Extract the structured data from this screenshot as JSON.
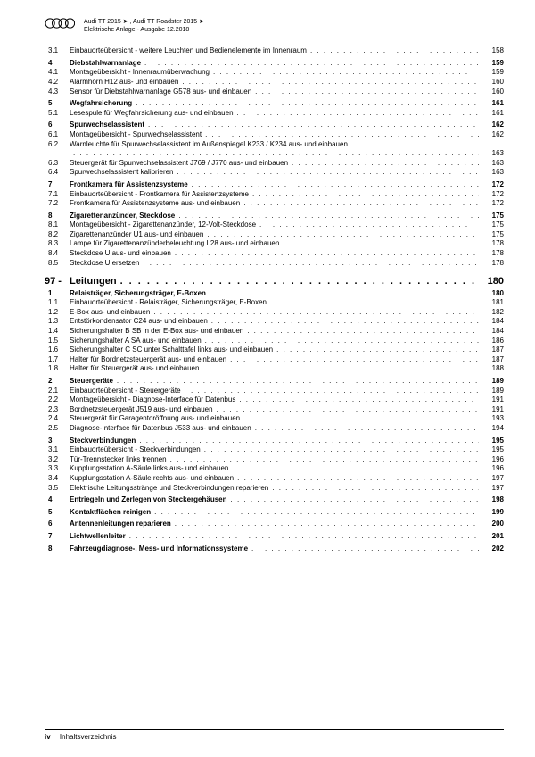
{
  "header": {
    "line1": "Audi TT 2015 ➤ , Audi TT Roadster 2015 ➤",
    "line2": "Elektrische Anlage - Ausgabe 12.2018"
  },
  "entries": [
    {
      "num": "3.1",
      "title": "Einbauorteübersicht - weitere Leuchten und Bedienelemente im Innenraum",
      "page": "158",
      "bold": false,
      "gapBefore": false
    },
    {
      "num": "4",
      "title": "Diebstahlwarnanlage",
      "page": "159",
      "bold": true,
      "gapBefore": true
    },
    {
      "num": "4.1",
      "title": "Montageübersicht - Innenraumüberwachung",
      "page": "159",
      "bold": false
    },
    {
      "num": "4.2",
      "title": "Alarmhorn H12 aus- und einbauen",
      "page": "160",
      "bold": false
    },
    {
      "num": "4.3",
      "title": "Sensor für Diebstahlwarnanlage G578 aus- und einbauen",
      "page": "160",
      "bold": false
    },
    {
      "num": "5",
      "title": "Wegfahrsicherung",
      "page": "161",
      "bold": true,
      "gapBefore": true
    },
    {
      "num": "5.1",
      "title": "Lesespule für Wegfahrsicherung aus- und einbauen",
      "page": "161",
      "bold": false
    },
    {
      "num": "6",
      "title": "Spurwechselassistent",
      "page": "162",
      "bold": true,
      "gapBefore": true
    },
    {
      "num": "6.1",
      "title": "Montageübersicht - Spurwechselassistent",
      "page": "162",
      "bold": false
    },
    {
      "num": "6.2",
      "title": "Warnleuchte für Spurwechselassistent im Außenspiegel K233 / K234 aus- und einbauen",
      "page": "163",
      "bold": false,
      "wrap": true
    },
    {
      "num": "6.3",
      "title": "Steuergerät für Spurwechselassistent J769 / J770 aus- und einbauen",
      "page": "163",
      "bold": false
    },
    {
      "num": "6.4",
      "title": "Spurwechselassistent kalibrieren",
      "page": "163",
      "bold": false
    },
    {
      "num": "7",
      "title": "Frontkamera für Assistenzsysteme",
      "page": "172",
      "bold": true,
      "gapBefore": true
    },
    {
      "num": "7.1",
      "title": "Einbauorteübersicht - Frontkamera für Assistenzsysteme",
      "page": "172",
      "bold": false
    },
    {
      "num": "7.2",
      "title": "Frontkamera für Assistenzsysteme aus- und einbauen",
      "page": "172",
      "bold": false
    },
    {
      "num": "8",
      "title": "Zigarettenanzünder, Steckdose",
      "page": "175",
      "bold": true,
      "gapBefore": true
    },
    {
      "num": "8.1",
      "title": "Montageübersicht - Zigarettenanzünder, 12-Volt-Steckdose",
      "page": "175",
      "bold": false
    },
    {
      "num": "8.2",
      "title": "Zigarettenanzünder U1 aus- und einbauen",
      "page": "175",
      "bold": false
    },
    {
      "num": "8.3",
      "title": "Lampe für Zigarettenanzünderbeleuchtung L28 aus- und einbauen",
      "page": "178",
      "bold": false
    },
    {
      "num": "8.4",
      "title": "Steckdose U aus- und einbauen",
      "page": "178",
      "bold": false
    },
    {
      "num": "8.5",
      "title": "Steckdose U ersetzen",
      "page": "178",
      "bold": false
    }
  ],
  "chapter": {
    "num": "97 -",
    "title": "Leitungen",
    "page": "180"
  },
  "entries2": [
    {
      "num": "1",
      "title": "Relaisträger, Sicherungsträger, E-Boxen",
      "page": "180",
      "bold": true
    },
    {
      "num": "1.1",
      "title": "Einbauorteübersicht - Relaisträger, Sicherungsträger, E-Boxen",
      "page": "181",
      "bold": false
    },
    {
      "num": "1.2",
      "title": "E-Box aus- und einbauen",
      "page": "182",
      "bold": false
    },
    {
      "num": "1.3",
      "title": "Entstörkondensator C24 aus- und einbauen",
      "page": "184",
      "bold": false
    },
    {
      "num": "1.4",
      "title": "Sicherungshalter B SB in der E-Box aus- und einbauen",
      "page": "184",
      "bold": false
    },
    {
      "num": "1.5",
      "title": "Sicherungshalter A SA aus- und einbauen",
      "page": "186",
      "bold": false
    },
    {
      "num": "1.6",
      "title": "Sicherungshalter C SC unter Schalttafel links aus- und einbauen",
      "page": "187",
      "bold": false
    },
    {
      "num": "1.7",
      "title": "Halter für Bordnetzsteuergerät aus- und einbauen",
      "page": "187",
      "bold": false
    },
    {
      "num": "1.8",
      "title": "Halter für Steuergerät aus- und einbauen",
      "page": "188",
      "bold": false
    },
    {
      "num": "2",
      "title": "Steuergeräte",
      "page": "189",
      "bold": true,
      "gapBefore": true
    },
    {
      "num": "2.1",
      "title": "Einbauorteübersicht - Steuergeräte",
      "page": "189",
      "bold": false
    },
    {
      "num": "2.2",
      "title": "Montageübersicht - Diagnose-Interface für Datenbus",
      "page": "191",
      "bold": false
    },
    {
      "num": "2.3",
      "title": "Bordnetzsteuergerät J519 aus- und einbauen",
      "page": "191",
      "bold": false
    },
    {
      "num": "2.4",
      "title": "Steuergerät für Garagentoröffnung aus- und einbauen",
      "page": "193",
      "bold": false
    },
    {
      "num": "2.5",
      "title": "Diagnose-Interface für Datenbus J533 aus- und einbauen",
      "page": "194",
      "bold": false
    },
    {
      "num": "3",
      "title": "Steckverbindungen",
      "page": "195",
      "bold": true,
      "gapBefore": true
    },
    {
      "num": "3.1",
      "title": "Einbauorteübersicht - Steckverbindungen",
      "page": "195",
      "bold": false
    },
    {
      "num": "3.2",
      "title": "Tür-Trennstecker links trennen",
      "page": "196",
      "bold": false
    },
    {
      "num": "3.3",
      "title": "Kupplungsstation A-Säule links aus- und einbauen",
      "page": "196",
      "bold": false
    },
    {
      "num": "3.4",
      "title": "Kupplungsstation A-Säule rechts aus- und einbauen",
      "page": "197",
      "bold": false
    },
    {
      "num": "3.5",
      "title": "Elektrische Leitungsstränge und Steckverbindungen reparieren",
      "page": "197",
      "bold": false
    },
    {
      "num": "4",
      "title": "Entriegeln und Zerlegen von Steckergehäusen",
      "page": "198",
      "bold": true,
      "gapBefore": true
    },
    {
      "num": "5",
      "title": "Kontaktflächen reinigen",
      "page": "199",
      "bold": true,
      "gapBefore": true
    },
    {
      "num": "6",
      "title": "Antennenleitungen reparieren",
      "page": "200",
      "bold": true,
      "gapBefore": true
    },
    {
      "num": "7",
      "title": "Lichtwellenleiter",
      "page": "201",
      "bold": true,
      "gapBefore": true
    },
    {
      "num": "8",
      "title": "Fahrzeugdiagnose-, Mess- und Informationssysteme",
      "page": "202",
      "bold": true,
      "gapBefore": true
    }
  ],
  "footer": {
    "pageno": "iv",
    "label": "Inhaltsverzeichnis"
  }
}
